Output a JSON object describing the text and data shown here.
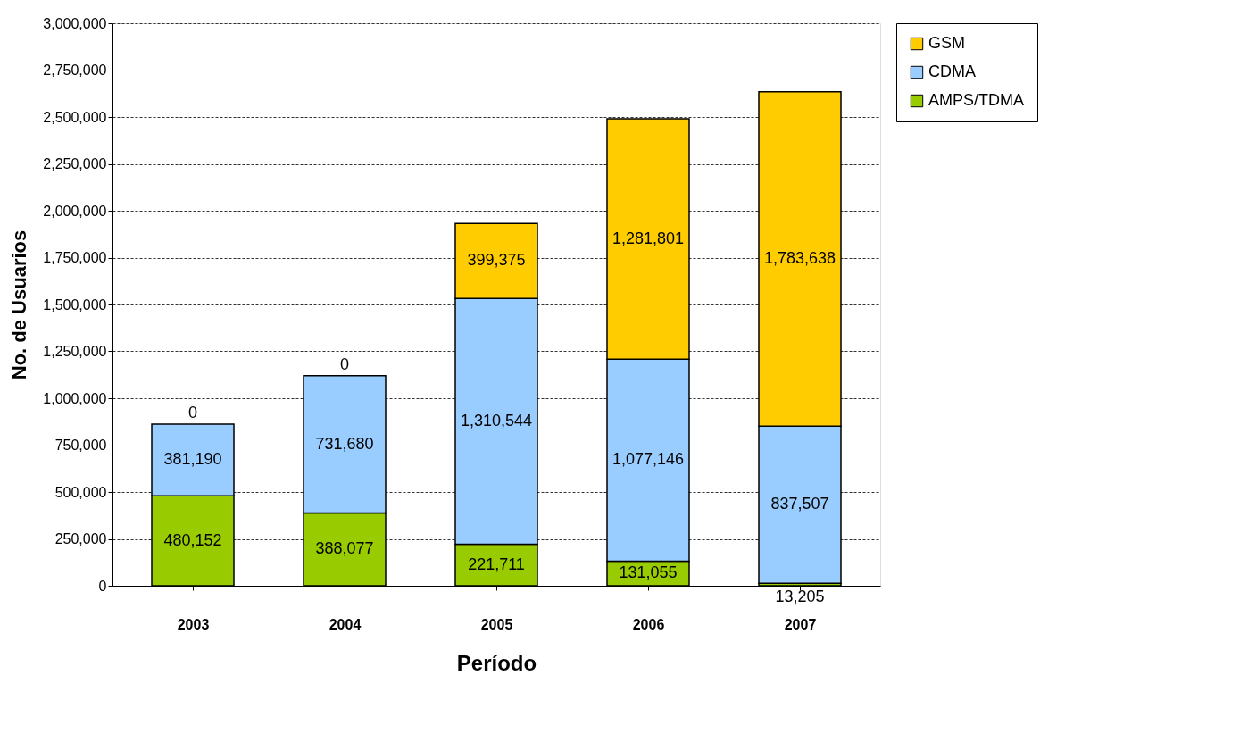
{
  "chart_data": {
    "type": "bar",
    "stacked": true,
    "xlabel": "Período",
    "ylabel": "No. de Usuarios",
    "categories": [
      "2003",
      "2004",
      "2005",
      "2006",
      "2007"
    ],
    "series": [
      {
        "name": "AMPS/TDMA",
        "color": "#99cc00",
        "values": [
          480152,
          388077,
          221711,
          131055,
          13205
        ],
        "value_labels": [
          "480,152",
          "388,077",
          "221,711",
          "131,055",
          "13,205"
        ]
      },
      {
        "name": "CDMA",
        "color": "#99ccff",
        "values": [
          381190,
          731680,
          1310544,
          1077146,
          837507
        ],
        "value_labels": [
          "381,190",
          "731,680",
          "1,310,544",
          "1,077,146",
          "837,507"
        ]
      },
      {
        "name": "GSM",
        "color": "#ffcc00",
        "values": [
          0,
          0,
          399375,
          1281801,
          1783638
        ],
        "value_labels": [
          "0",
          "0",
          "399,375",
          "1,281,801",
          "1,783,638"
        ]
      }
    ],
    "ylim": [
      0,
      3000000
    ],
    "yticks": [
      0,
      {
        "value": 250000,
        "label": "250,000"
      },
      {
        "value": 500000,
        "label": "500,000"
      },
      {
        "value": 750000,
        "label": "750,000"
      },
      {
        "value": 1000000,
        "label": "1,000,000"
      },
      {
        "value": 1250000,
        "label": "1,250,000"
      },
      {
        "value": 1500000,
        "label": "1,500,000"
      },
      {
        "value": 1750000,
        "label": "1,750,000"
      },
      {
        "value": 2000000,
        "label": "2,000,000"
      },
      {
        "value": 2250000,
        "label": "2,250,000"
      },
      {
        "value": 2500000,
        "label": "2,500,000"
      },
      {
        "value": 2750000,
        "label": "2,750,000"
      },
      {
        "value": 3000000,
        "label": "3,000,000"
      }
    ],
    "grid": "y",
    "legend": "right"
  }
}
